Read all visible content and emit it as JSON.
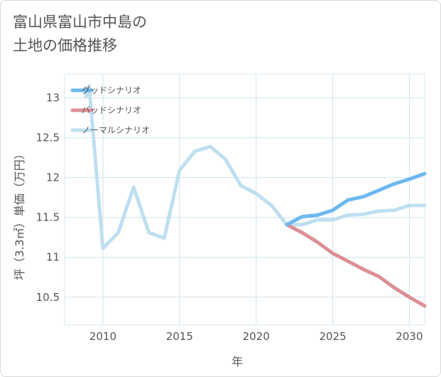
{
  "title": "富山県富山市中島の\n土地の価格推移",
  "chart_data": {
    "type": "line",
    "xlabel": "年",
    "ylabel": "坪（3.3㎡）単価（万円）",
    "xlim": [
      2007.5,
      2031
    ],
    "ylim": [
      10.15,
      13.3
    ],
    "xticks": [
      2010,
      2015,
      2020,
      2025,
      2030
    ],
    "yticks": [
      10.5,
      11,
      11.5,
      12,
      12.5,
      13
    ],
    "ytick_labels": [
      "10.5",
      "11",
      "11.5",
      "12",
      "12.5",
      "13"
    ],
    "grid": true,
    "legend_position": "top-left",
    "series": [
      {
        "name": "グッドシナリオ",
        "color": "#6cb8ef",
        "x": [
          2022,
          2023,
          2024,
          2025,
          2026,
          2027,
          2028,
          2029,
          2030,
          2031
        ],
        "values": [
          11.41,
          11.51,
          11.53,
          11.59,
          11.72,
          11.76,
          11.84,
          11.92,
          11.98,
          12.05
        ]
      },
      {
        "name": "バッドシナリオ",
        "color": "#dd8f96",
        "x": [
          2022,
          2023,
          2024,
          2025,
          2026,
          2027,
          2028,
          2029,
          2030,
          2031
        ],
        "values": [
          11.41,
          11.31,
          11.19,
          11.05,
          10.95,
          10.85,
          10.76,
          10.62,
          10.5,
          10.39
        ]
      },
      {
        "name": "ノーマルシナリオ",
        "color": "#bfdff0",
        "x": [
          2008.9,
          2009.1,
          2010,
          2011,
          2012,
          2013,
          2014,
          2015,
          2016,
          2017,
          2018,
          2019,
          2020,
          2021,
          2022,
          2023,
          2024,
          2025,
          2026,
          2027,
          2028,
          2029,
          2030,
          2031
        ],
        "values": [
          13.02,
          13.15,
          11.11,
          11.31,
          11.88,
          11.31,
          11.24,
          12.09,
          12.33,
          12.39,
          12.23,
          11.9,
          11.8,
          11.65,
          11.41,
          11.41,
          11.47,
          11.47,
          11.53,
          11.54,
          11.58,
          11.59,
          11.65,
          11.65
        ]
      }
    ]
  }
}
